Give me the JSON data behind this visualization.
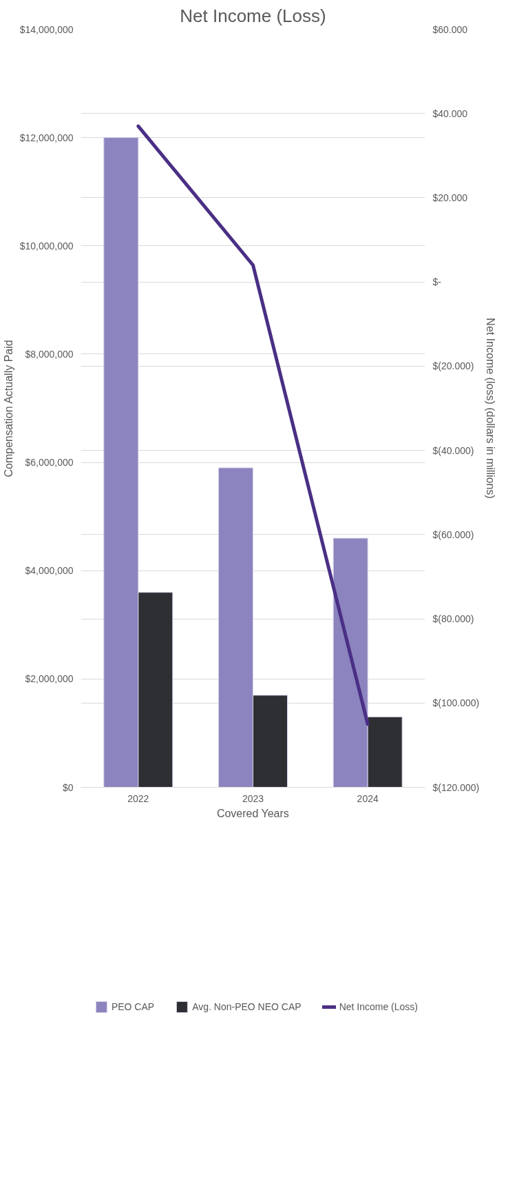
{
  "chart_data": {
    "type": "bar",
    "title": "Net Income (Loss)",
    "xlabel": "Covered Years",
    "ylabel": "Compensation Actually Paid",
    "y2label": "Net Income (loss) (dollars in millions)",
    "categories": [
      "2022",
      "2023",
      "2024"
    ],
    "series": [
      {
        "name": "PEO CAP",
        "color": "#8b84be",
        "values": [
          12000000,
          5900000,
          4600000
        ]
      },
      {
        "name": "Avg. Non-PEO NEO CAP",
        "color": "#2e2f33",
        "values": [
          3600000,
          1700000,
          1300000
        ]
      },
      {
        "name": "Net Income (Loss)",
        "type": "line",
        "axis": "y2",
        "color": "#4a2f85",
        "values": [
          37,
          4,
          -105
        ]
      }
    ],
    "ylim": [
      0,
      14000000
    ],
    "yticks": [
      {
        "value": 0,
        "label": "$0"
      },
      {
        "value": 2000000,
        "label": "$2,000,000"
      },
      {
        "value": 4000000,
        "label": "$4,000,000"
      },
      {
        "value": 6000000,
        "label": "$6,000,000"
      },
      {
        "value": 8000000,
        "label": "$8,000,000"
      },
      {
        "value": 10000000,
        "label": "$10,000,000"
      },
      {
        "value": 12000000,
        "label": "$12,000,000"
      },
      {
        "value": 14000000,
        "label": "$14,000,000"
      }
    ],
    "y2lim": [
      -120,
      60
    ],
    "y2ticks": [
      {
        "value": -120,
        "label": "$(120.000)"
      },
      {
        "value": -100,
        "label": "$(100.000)"
      },
      {
        "value": -80,
        "label": "$(80.000)"
      },
      {
        "value": -60,
        "label": "$(60.000)"
      },
      {
        "value": -40,
        "label": "$(40.000)"
      },
      {
        "value": -20,
        "label": "$(20.000)"
      },
      {
        "value": 0,
        "label": "$-"
      },
      {
        "value": 20,
        "label": "$20.000"
      },
      {
        "value": 40,
        "label": "$40.000"
      },
      {
        "value": 60,
        "label": "$60.000"
      }
    ],
    "grid": "y",
    "legend": "bottom",
    "marker": "none",
    "line_style": "solid"
  }
}
